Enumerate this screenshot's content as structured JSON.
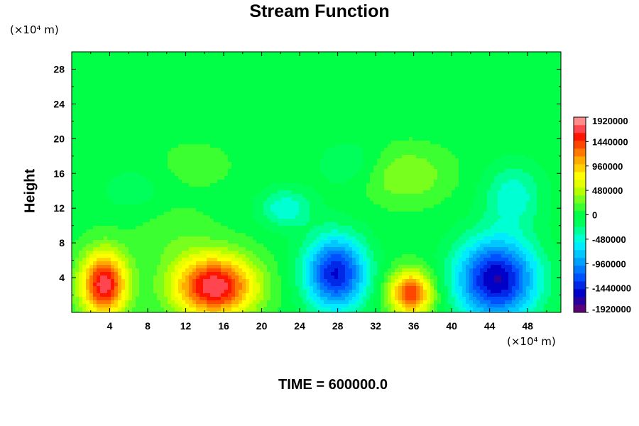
{
  "chart_data": {
    "type": "heatmap",
    "title": "Stream Function",
    "ylabel": "Height",
    "xlabel": "",
    "x_unit": "(×10⁴ m)",
    "y_unit": "(×10⁴ m)",
    "time_label": "TIME = 600000.0",
    "xlim": [
      0,
      51.5
    ],
    "ylim": [
      0,
      30
    ],
    "x_ticks": [
      4,
      8,
      12,
      16,
      20,
      24,
      28,
      32,
      36,
      40,
      44,
      48
    ],
    "y_ticks": [
      4,
      8,
      12,
      16,
      20,
      24,
      28
    ],
    "background_value": 20000,
    "features": [
      {
        "x": 3.4,
        "y": 3.2,
        "value": 1700000,
        "sx": 1.7,
        "sy": 2.6
      },
      {
        "x": 15.0,
        "y": 3.0,
        "value": 1750000,
        "sx": 3.0,
        "sy": 2.5
      },
      {
        "x": 27.8,
        "y": 4.5,
        "value": -1500000,
        "sx": 2.3,
        "sy": 3.0
      },
      {
        "x": 35.7,
        "y": 2.2,
        "value": 1450000,
        "sx": 1.6,
        "sy": 1.8
      },
      {
        "x": 44.7,
        "y": 3.8,
        "value": -1650000,
        "sx": 3.0,
        "sy": 3.3
      },
      {
        "x": 22.5,
        "y": 12.0,
        "value": -520000,
        "sx": 2.0,
        "sy": 1.6
      },
      {
        "x": 46.5,
        "y": 13.5,
        "value": -500000,
        "sx": 2.2,
        "sy": 2.6
      },
      {
        "x": 35.0,
        "y": 15.8,
        "value": 380000,
        "sx": 3.2,
        "sy": 2.2
      },
      {
        "x": 6.5,
        "y": 14.0,
        "value": -180000,
        "sx": 2.5,
        "sy": 2.0
      },
      {
        "x": 29.5,
        "y": 17.0,
        "value": -250000,
        "sx": 2.5,
        "sy": 2.0
      },
      {
        "x": 10.5,
        "y": 9.0,
        "value": 150000,
        "sx": 3.0,
        "sy": 2.5
      },
      {
        "x": 13.0,
        "y": 17.0,
        "value": 120000,
        "sx": 3.0,
        "sy": 2.0
      }
    ],
    "colorbar": {
      "min": -1920000,
      "max": 1920000,
      "tick_labels": [
        "1920000",
        "1440000",
        "960000",
        "480000",
        "0",
        "-480000",
        "-960000",
        "-1440000",
        "-1920000"
      ],
      "colors": [
        "#5a0078",
        "#2800a0",
        "#0000c8",
        "#0028e6",
        "#0050ff",
        "#0078ff",
        "#00a0ff",
        "#00c8ff",
        "#00ebff",
        "#00ffd2",
        "#00ff96",
        "#00ff5a",
        "#00ff46",
        "#3cff32",
        "#78ff1e",
        "#b4ff00",
        "#e6ff00",
        "#ffff00",
        "#ffd200",
        "#ffaa00",
        "#ff7800",
        "#ff4600",
        "#ff1400",
        "#ff4650",
        "#ff8c8c"
      ]
    }
  }
}
